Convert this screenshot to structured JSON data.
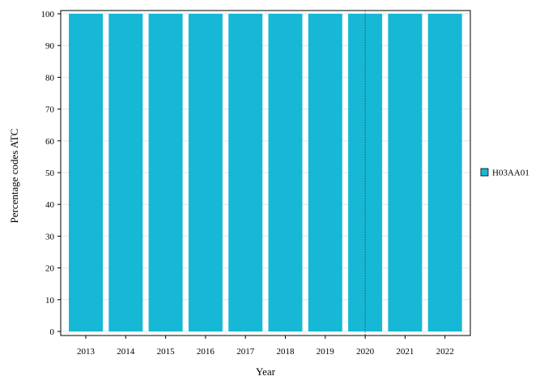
{
  "chart_data": {
    "type": "bar",
    "categories": [
      "2013",
      "2014",
      "2015",
      "2016",
      "2017",
      "2018",
      "2019",
      "2020",
      "2021",
      "2022"
    ],
    "series": [
      {
        "name": "H03AA01",
        "color": "#17b8d6",
        "values": [
          100,
          100,
          100,
          100,
          100,
          100,
          100,
          100,
          100,
          100
        ]
      }
    ],
    "xlabel": "Year",
    "ylabel": "Percentage codes ATC",
    "ylim": [
      0,
      100
    ],
    "yticks": [
      0,
      10,
      20,
      30,
      40,
      50,
      60,
      70,
      80,
      90,
      100
    ],
    "grid": true,
    "legend_position": "right",
    "marker_line_at": "2020"
  }
}
